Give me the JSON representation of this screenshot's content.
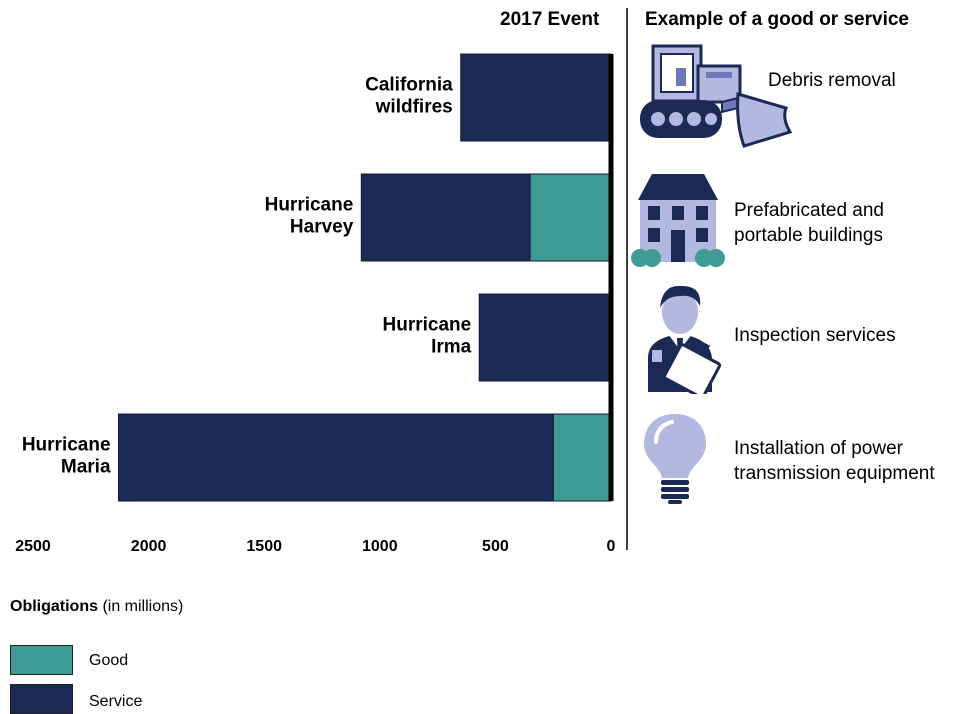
{
  "header": {
    "event_col": "2017 Event",
    "example_col": "Example of a good or service"
  },
  "colors": {
    "good": "#3f9c94",
    "service": "#1b2a55",
    "icon_fill": "#b3b8e0",
    "icon_dark": "#1b2a55",
    "icon_mid": "#6d78b8"
  },
  "chart_data": {
    "type": "bar",
    "orientation": "horizontal",
    "stacked": true,
    "x_reversed": true,
    "categories": [
      "California\nwildfires",
      "Hurricane\nHarvey",
      "Hurricane\nIrma",
      "Hurricane\nMaria"
    ],
    "series": [
      {
        "name": "Good",
        "values": [
          0,
          350,
          0,
          250
        ]
      },
      {
        "name": "Service",
        "values": [
          650,
          730,
          570,
          1880
        ]
      }
    ],
    "xlim": [
      0,
      2500
    ],
    "xticks": [
      2500,
      2000,
      1500,
      1000,
      500,
      0
    ],
    "grid": false
  },
  "examples": [
    {
      "icon": "bulldozer-icon",
      "lines": [
        "Debris removal"
      ]
    },
    {
      "icon": "building-icon",
      "lines": [
        "Prefabricated and",
        "portable buildings"
      ]
    },
    {
      "icon": "inspector-icon",
      "lines": [
        "Inspection services"
      ]
    },
    {
      "icon": "lightbulb-icon",
      "lines": [
        "Installation of power",
        "transmission equipment"
      ]
    }
  ],
  "legend": {
    "title_bold": "Obligations",
    "title_rest": " (in millions)",
    "items": [
      {
        "label": "Good"
      },
      {
        "label": "Service"
      }
    ]
  }
}
